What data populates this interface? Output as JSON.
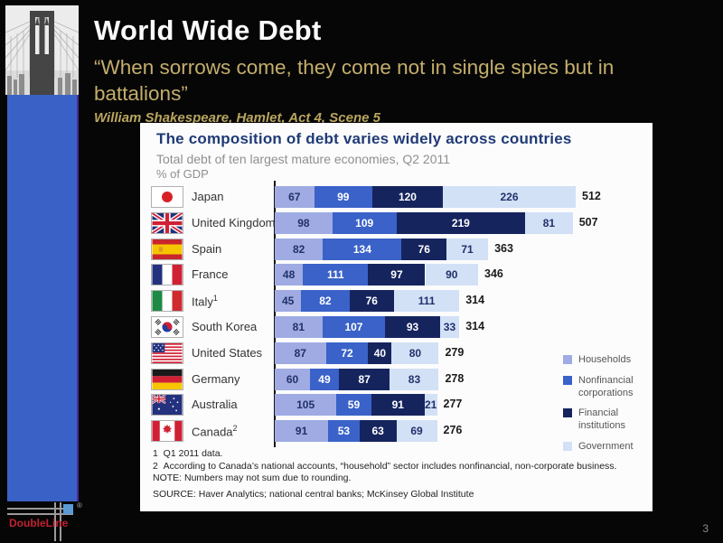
{
  "slide": {
    "page_number": "3"
  },
  "header": {
    "title": "World Wide Debt",
    "quote": "“When sorrows come, they come not in single spies but in battalions”",
    "attribution": "William Shakespeare, Hamlet, Act 4, Scene 5"
  },
  "logo": {
    "brand": "DoubleLine",
    "registered": "®"
  },
  "chart_data": {
    "type": "bar",
    "orientation": "horizontal-stacked",
    "title": "The composition of debt varies widely across countries",
    "subtitle": "Total debt of ten largest mature economies, Q2 2011",
    "unit_label": "% of GDP",
    "x_max": 512,
    "grid": false,
    "legend_position": "right",
    "series_names": [
      "Households",
      "Nonfinancial corporations",
      "Financial institutions",
      "Government"
    ],
    "colors": {
      "households": "#9fabe2",
      "nonfinancial": "#3a62c8",
      "financial": "#16245e",
      "government": "#d2e1f6"
    },
    "value_text_colors": {
      "households": "#22306b",
      "nonfinancial": "#ffffff",
      "financial": "#ffffff",
      "government": "#22306b"
    },
    "legend": [
      {
        "key": "households",
        "label": "Households"
      },
      {
        "key": "nonfinancial",
        "label": "Nonfinancial corporations"
      },
      {
        "key": "financial",
        "label": "Financial institutions"
      },
      {
        "key": "government",
        "label": "Government"
      }
    ],
    "rows": [
      {
        "country": "Japan",
        "flag": "japan",
        "values": [
          67,
          99,
          120,
          226
        ],
        "total": 512
      },
      {
        "country": "United Kingdom",
        "flag": "united-kingdom",
        "values": [
          98,
          109,
          219,
          81
        ],
        "total": 507
      },
      {
        "country": "Spain",
        "flag": "spain",
        "values": [
          82,
          134,
          76,
          71
        ],
        "total": 363
      },
      {
        "country": "France",
        "flag": "france",
        "values": [
          48,
          111,
          97,
          90
        ],
        "total": 346
      },
      {
        "country": "Italy",
        "flag": "italy",
        "sup": "1",
        "values": [
          45,
          82,
          76,
          111
        ],
        "total": 314
      },
      {
        "country": "South Korea",
        "flag": "south-korea",
        "values": [
          81,
          107,
          93,
          33
        ],
        "total": 314
      },
      {
        "country": "United States",
        "flag": "united-states",
        "values": [
          87,
          72,
          40,
          80
        ],
        "total": 279
      },
      {
        "country": "Germany",
        "flag": "germany",
        "values": [
          60,
          49,
          87,
          83
        ],
        "total": 278
      },
      {
        "country": "Australia",
        "flag": "australia",
        "values": [
          105,
          59,
          91,
          21
        ],
        "total": 277
      },
      {
        "country": "Canada",
        "flag": "canada",
        "sup": "2",
        "values": [
          91,
          53,
          63,
          69
        ],
        "total": 276
      }
    ],
    "footnotes": [
      "1  Q1 2011 data.",
      "2  According to Canada’s national accounts, “household” sector includes nonfinancial, non-corporate business.",
      "NOTE: Numbers may not sum due to rounding.",
      "SOURCE: Haver Analytics; national central banks; McKinsey Global Institute"
    ]
  }
}
